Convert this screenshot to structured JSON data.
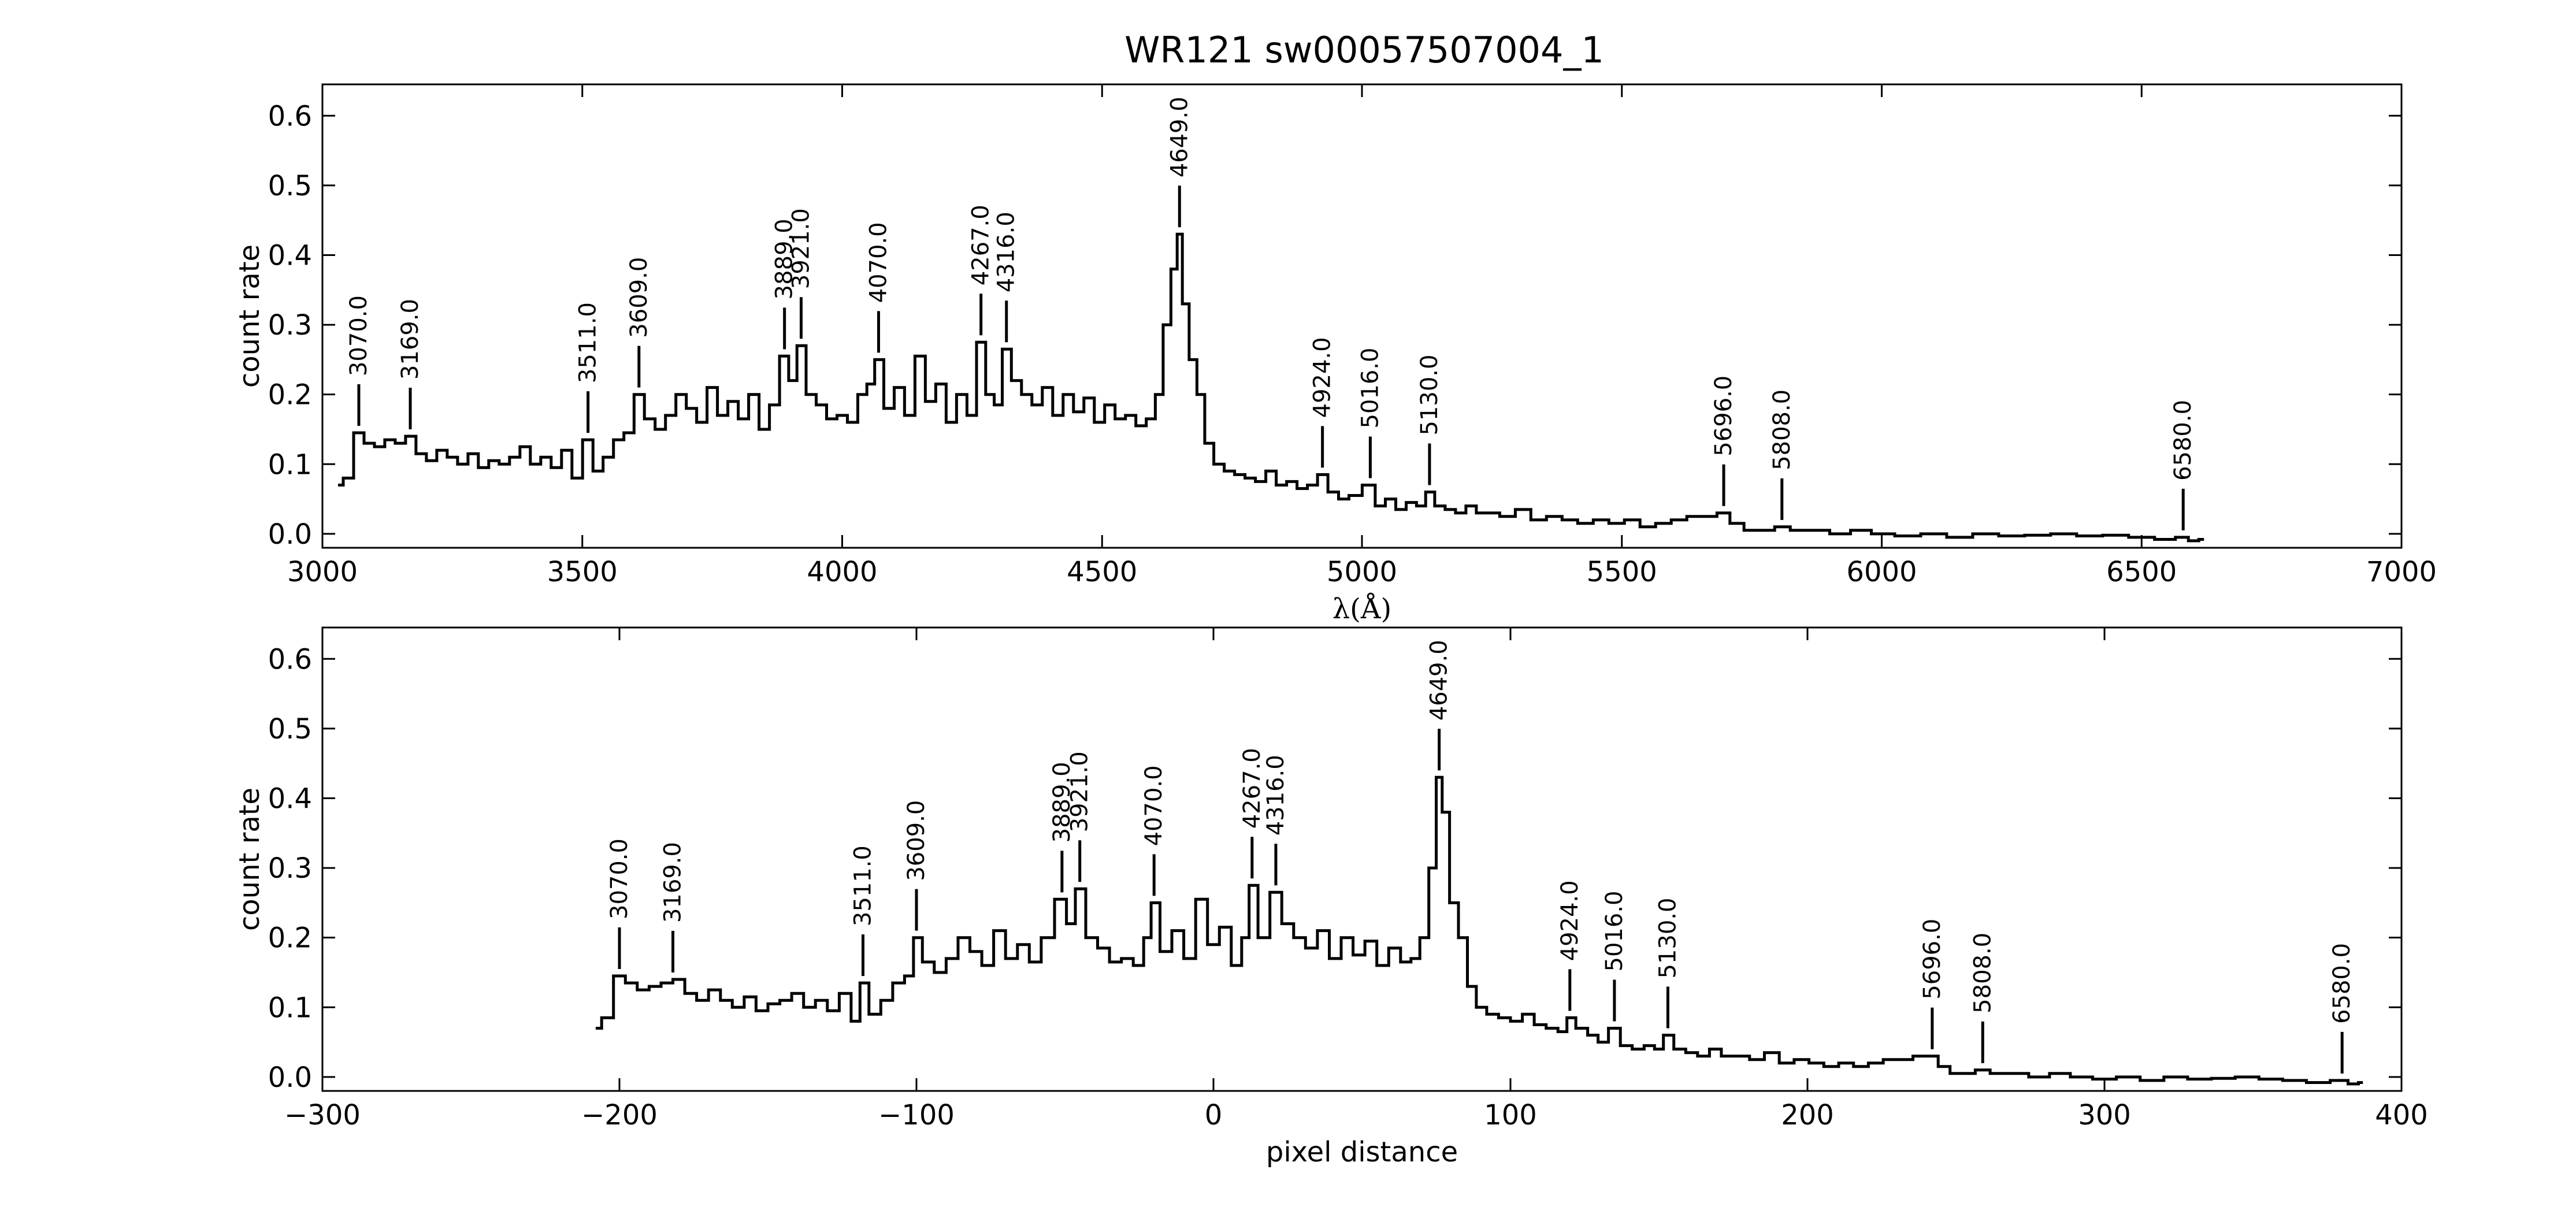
{
  "title": "WR121  sw00057507004_1",
  "chart_data": [
    {
      "type": "line",
      "xlabel": "λ(Å)",
      "ylabel": "count rate",
      "xlim": [
        3000,
        7000
      ],
      "ylim": [
        -0.02,
        0.645
      ],
      "xticks": [
        3000,
        3500,
        4000,
        4500,
        5000,
        5500,
        6000,
        6500,
        7000
      ],
      "yticks": [
        0.0,
        0.1,
        0.2,
        0.3,
        0.4,
        0.5,
        0.6
      ],
      "grid": false,
      "line_labels": [
        {
          "text": "3070.0",
          "x": 3070,
          "y": 0.145
        },
        {
          "text": "3169.0",
          "x": 3169,
          "y": 0.14
        },
        {
          "text": "3511.0",
          "x": 3511,
          "y": 0.135
        },
        {
          "text": "3609.0",
          "x": 3609,
          "y": 0.2
        },
        {
          "text": "3889.0",
          "x": 3889,
          "y": 0.255
        },
        {
          "text": "3921.0",
          "x": 3921,
          "y": 0.27
        },
        {
          "text": "4070.0",
          "x": 4070,
          "y": 0.25
        },
        {
          "text": "4267.0",
          "x": 4267,
          "y": 0.275
        },
        {
          "text": "4316.0",
          "x": 4316,
          "y": 0.265
        },
        {
          "text": "4649.0",
          "x": 4649,
          "y": 0.43
        },
        {
          "text": "4924.0",
          "x": 4924,
          "y": 0.085
        },
        {
          "text": "5016.0",
          "x": 5016,
          "y": 0.07
        },
        {
          "text": "5130.0",
          "x": 5130,
          "y": 0.06
        },
        {
          "text": "5696.0",
          "x": 5696,
          "y": 0.03
        },
        {
          "text": "5808.0",
          "x": 5808,
          "y": 0.01
        },
        {
          "text": "6580.0",
          "x": 6580,
          "y": -0.005
        }
      ],
      "series": [
        {
          "x": [
            3030,
            3050,
            3070,
            3090,
            3110,
            3130,
            3150,
            3170,
            3190,
            3210,
            3230,
            3250,
            3270,
            3290,
            3310,
            3330,
            3350,
            3370,
            3390,
            3410,
            3430,
            3450,
            3470,
            3490,
            3511,
            3530,
            3550,
            3570,
            3590,
            3609,
            3630,
            3650,
            3670,
            3690,
            3710,
            3730,
            3750,
            3770,
            3790,
            3810,
            3830,
            3850,
            3870,
            3889,
            3905,
            3921,
            3940,
            3960,
            3980,
            4000,
            4020,
            4040,
            4055,
            4070,
            4090,
            4110,
            4130,
            4150,
            4170,
            4190,
            4210,
            4230,
            4250,
            4267,
            4285,
            4300,
            4316,
            4335,
            4355,
            4375,
            4395,
            4415,
            4435,
            4455,
            4475,
            4495,
            4515,
            4535,
            4555,
            4575,
            4595,
            4610,
            4625,
            4640,
            4649,
            4660,
            4675,
            4690,
            4705,
            4725,
            4745,
            4765,
            4785,
            4805,
            4825,
            4845,
            4865,
            4885,
            4905,
            4924,
            4945,
            4965,
            4985,
            5016,
            5035,
            5055,
            5075,
            5095,
            5115,
            5130,
            5150,
            5170,
            5190,
            5210,
            5230,
            5250,
            5280,
            5310,
            5340,
            5370,
            5400,
            5430,
            5460,
            5490,
            5520,
            5550,
            5580,
            5610,
            5640,
            5670,
            5696,
            5720,
            5750,
            5780,
            5808,
            5840,
            5880,
            5920,
            5960,
            6000,
            6050,
            6100,
            6150,
            6200,
            6250,
            6300,
            6350,
            6400,
            6450,
            6500,
            6550,
            6580,
            6600,
            6620
          ],
          "y": [
            0.07,
            0.08,
            0.145,
            0.13,
            0.125,
            0.135,
            0.13,
            0.14,
            0.115,
            0.105,
            0.12,
            0.11,
            0.1,
            0.115,
            0.095,
            0.105,
            0.1,
            0.11,
            0.125,
            0.1,
            0.11,
            0.095,
            0.12,
            0.08,
            0.135,
            0.09,
            0.11,
            0.135,
            0.145,
            0.2,
            0.165,
            0.15,
            0.17,
            0.2,
            0.18,
            0.16,
            0.21,
            0.17,
            0.19,
            0.165,
            0.2,
            0.15,
            0.185,
            0.255,
            0.22,
            0.27,
            0.2,
            0.185,
            0.165,
            0.17,
            0.16,
            0.2,
            0.215,
            0.25,
            0.18,
            0.21,
            0.17,
            0.255,
            0.19,
            0.215,
            0.16,
            0.2,
            0.17,
            0.275,
            0.2,
            0.185,
            0.265,
            0.22,
            0.2,
            0.185,
            0.21,
            0.17,
            0.2,
            0.175,
            0.195,
            0.16,
            0.185,
            0.165,
            0.17,
            0.155,
            0.165,
            0.2,
            0.3,
            0.38,
            0.43,
            0.33,
            0.25,
            0.2,
            0.13,
            0.1,
            0.09,
            0.085,
            0.08,
            0.075,
            0.09,
            0.07,
            0.075,
            0.065,
            0.07,
            0.085,
            0.06,
            0.05,
            0.055,
            0.07,
            0.04,
            0.05,
            0.035,
            0.045,
            0.04,
            0.06,
            0.04,
            0.035,
            0.03,
            0.04,
            0.03,
            0.03,
            0.025,
            0.035,
            0.02,
            0.025,
            0.02,
            0.015,
            0.02,
            0.015,
            0.02,
            0.01,
            0.015,
            0.02,
            0.025,
            0.025,
            0.03,
            0.015,
            0.005,
            0.005,
            0.01,
            0.005,
            0.005,
            0.0,
            0.005,
            0.0,
            -0.003,
            0.0,
            -0.005,
            0.0,
            -0.003,
            -0.002,
            0.0,
            -0.003,
            -0.002,
            -0.005,
            -0.008,
            -0.005,
            -0.01,
            -0.008
          ]
        }
      ]
    },
    {
      "type": "line",
      "xlabel": "pixel distance",
      "ylabel": "count rate",
      "xlim": [
        -300,
        400
      ],
      "ylim": [
        -0.02,
        0.645
      ],
      "xticks": [
        -300,
        -200,
        -100,
        0,
        100,
        200,
        300,
        400
      ],
      "yticks": [
        0.0,
        0.1,
        0.2,
        0.3,
        0.4,
        0.5,
        0.6
      ],
      "grid": false,
      "line_labels": [
        {
          "text": "3070.0",
          "x": -200,
          "y": 0.145
        },
        {
          "text": "3169.0",
          "x": -182,
          "y": 0.14
        },
        {
          "text": "3511.0",
          "x": -118,
          "y": 0.135
        },
        {
          "text": "3609.0",
          "x": -100,
          "y": 0.2
        },
        {
          "text": "3889.0",
          "x": -51,
          "y": 0.255
        },
        {
          "text": "3921.0",
          "x": -45,
          "y": 0.27
        },
        {
          "text": "4070.0",
          "x": -20,
          "y": 0.25
        },
        {
          "text": "4267.0",
          "x": 13,
          "y": 0.275
        },
        {
          "text": "4316.0",
          "x": 21,
          "y": 0.265
        },
        {
          "text": "4649.0",
          "x": 76,
          "y": 0.43
        },
        {
          "text": "4924.0",
          "x": 120,
          "y": 0.085
        },
        {
          "text": "5016.0",
          "x": 135,
          "y": 0.07
        },
        {
          "text": "5130.0",
          "x": 153,
          "y": 0.06
        },
        {
          "text": "5696.0",
          "x": 242,
          "y": 0.03
        },
        {
          "text": "5808.0",
          "x": 259,
          "y": 0.01
        },
        {
          "text": "6580.0",
          "x": 380,
          "y": -0.005
        }
      ],
      "series": [
        {
          "x": [
            -208,
            -204,
            -200,
            -196,
            -192,
            -188,
            -184,
            -180,
            -176,
            -172,
            -168,
            -164,
            -160,
            -156,
            -152,
            -148,
            -144,
            -140,
            -136,
            -132,
            -128,
            -124,
            -120,
            -118,
            -114,
            -110,
            -106,
            -102,
            -100,
            -96,
            -92,
            -88,
            -84,
            -80,
            -76,
            -72,
            -68,
            -64,
            -60,
            -56,
            -51,
            -48,
            -45,
            -41,
            -37,
            -33,
            -29,
            -25,
            -22,
            -20,
            -16,
            -12,
            -8,
            -4,
            0,
            4,
            8,
            11,
            13,
            17,
            21,
            25,
            29,
            33,
            37,
            41,
            45,
            49,
            53,
            57,
            61,
            65,
            68,
            71,
            74,
            76,
            78,
            81,
            84,
            87,
            90,
            94,
            98,
            102,
            106,
            110,
            114,
            118,
            120,
            124,
            128,
            131,
            135,
            139,
            143,
            147,
            150,
            153,
            157,
            161,
            165,
            169,
            173,
            178,
            183,
            188,
            193,
            198,
            203,
            208,
            213,
            218,
            223,
            228,
            233,
            238,
            242,
            246,
            250,
            254,
            259,
            264,
            271,
            278,
            285,
            292,
            300,
            308,
            316,
            324,
            332,
            340,
            348,
            356,
            364,
            372,
            380,
            384,
            387
          ],
          "y": [
            0.07,
            0.085,
            0.145,
            0.135,
            0.125,
            0.13,
            0.135,
            0.14,
            0.12,
            0.11,
            0.125,
            0.11,
            0.1,
            0.115,
            0.095,
            0.105,
            0.11,
            0.12,
            0.1,
            0.11,
            0.095,
            0.12,
            0.08,
            0.135,
            0.09,
            0.11,
            0.135,
            0.145,
            0.2,
            0.165,
            0.15,
            0.17,
            0.2,
            0.18,
            0.16,
            0.21,
            0.17,
            0.19,
            0.165,
            0.2,
            0.255,
            0.22,
            0.27,
            0.2,
            0.185,
            0.165,
            0.17,
            0.16,
            0.2,
            0.25,
            0.18,
            0.21,
            0.17,
            0.255,
            0.19,
            0.215,
            0.16,
            0.2,
            0.275,
            0.2,
            0.265,
            0.22,
            0.2,
            0.185,
            0.21,
            0.17,
            0.2,
            0.175,
            0.195,
            0.16,
            0.185,
            0.165,
            0.17,
            0.2,
            0.3,
            0.43,
            0.38,
            0.25,
            0.2,
            0.13,
            0.1,
            0.09,
            0.085,
            0.08,
            0.09,
            0.075,
            0.07,
            0.065,
            0.085,
            0.07,
            0.06,
            0.05,
            0.07,
            0.045,
            0.04,
            0.045,
            0.04,
            0.06,
            0.04,
            0.035,
            0.03,
            0.04,
            0.03,
            0.03,
            0.025,
            0.035,
            0.02,
            0.025,
            0.02,
            0.015,
            0.02,
            0.015,
            0.02,
            0.025,
            0.025,
            0.03,
            0.03,
            0.015,
            0.005,
            0.005,
            0.01,
            0.005,
            0.005,
            0.0,
            0.005,
            0.0,
            -0.003,
            0.0,
            -0.005,
            0.0,
            -0.003,
            -0.002,
            0.0,
            -0.003,
            -0.005,
            -0.008,
            -0.005,
            -0.01,
            -0.008
          ]
        }
      ]
    }
  ]
}
